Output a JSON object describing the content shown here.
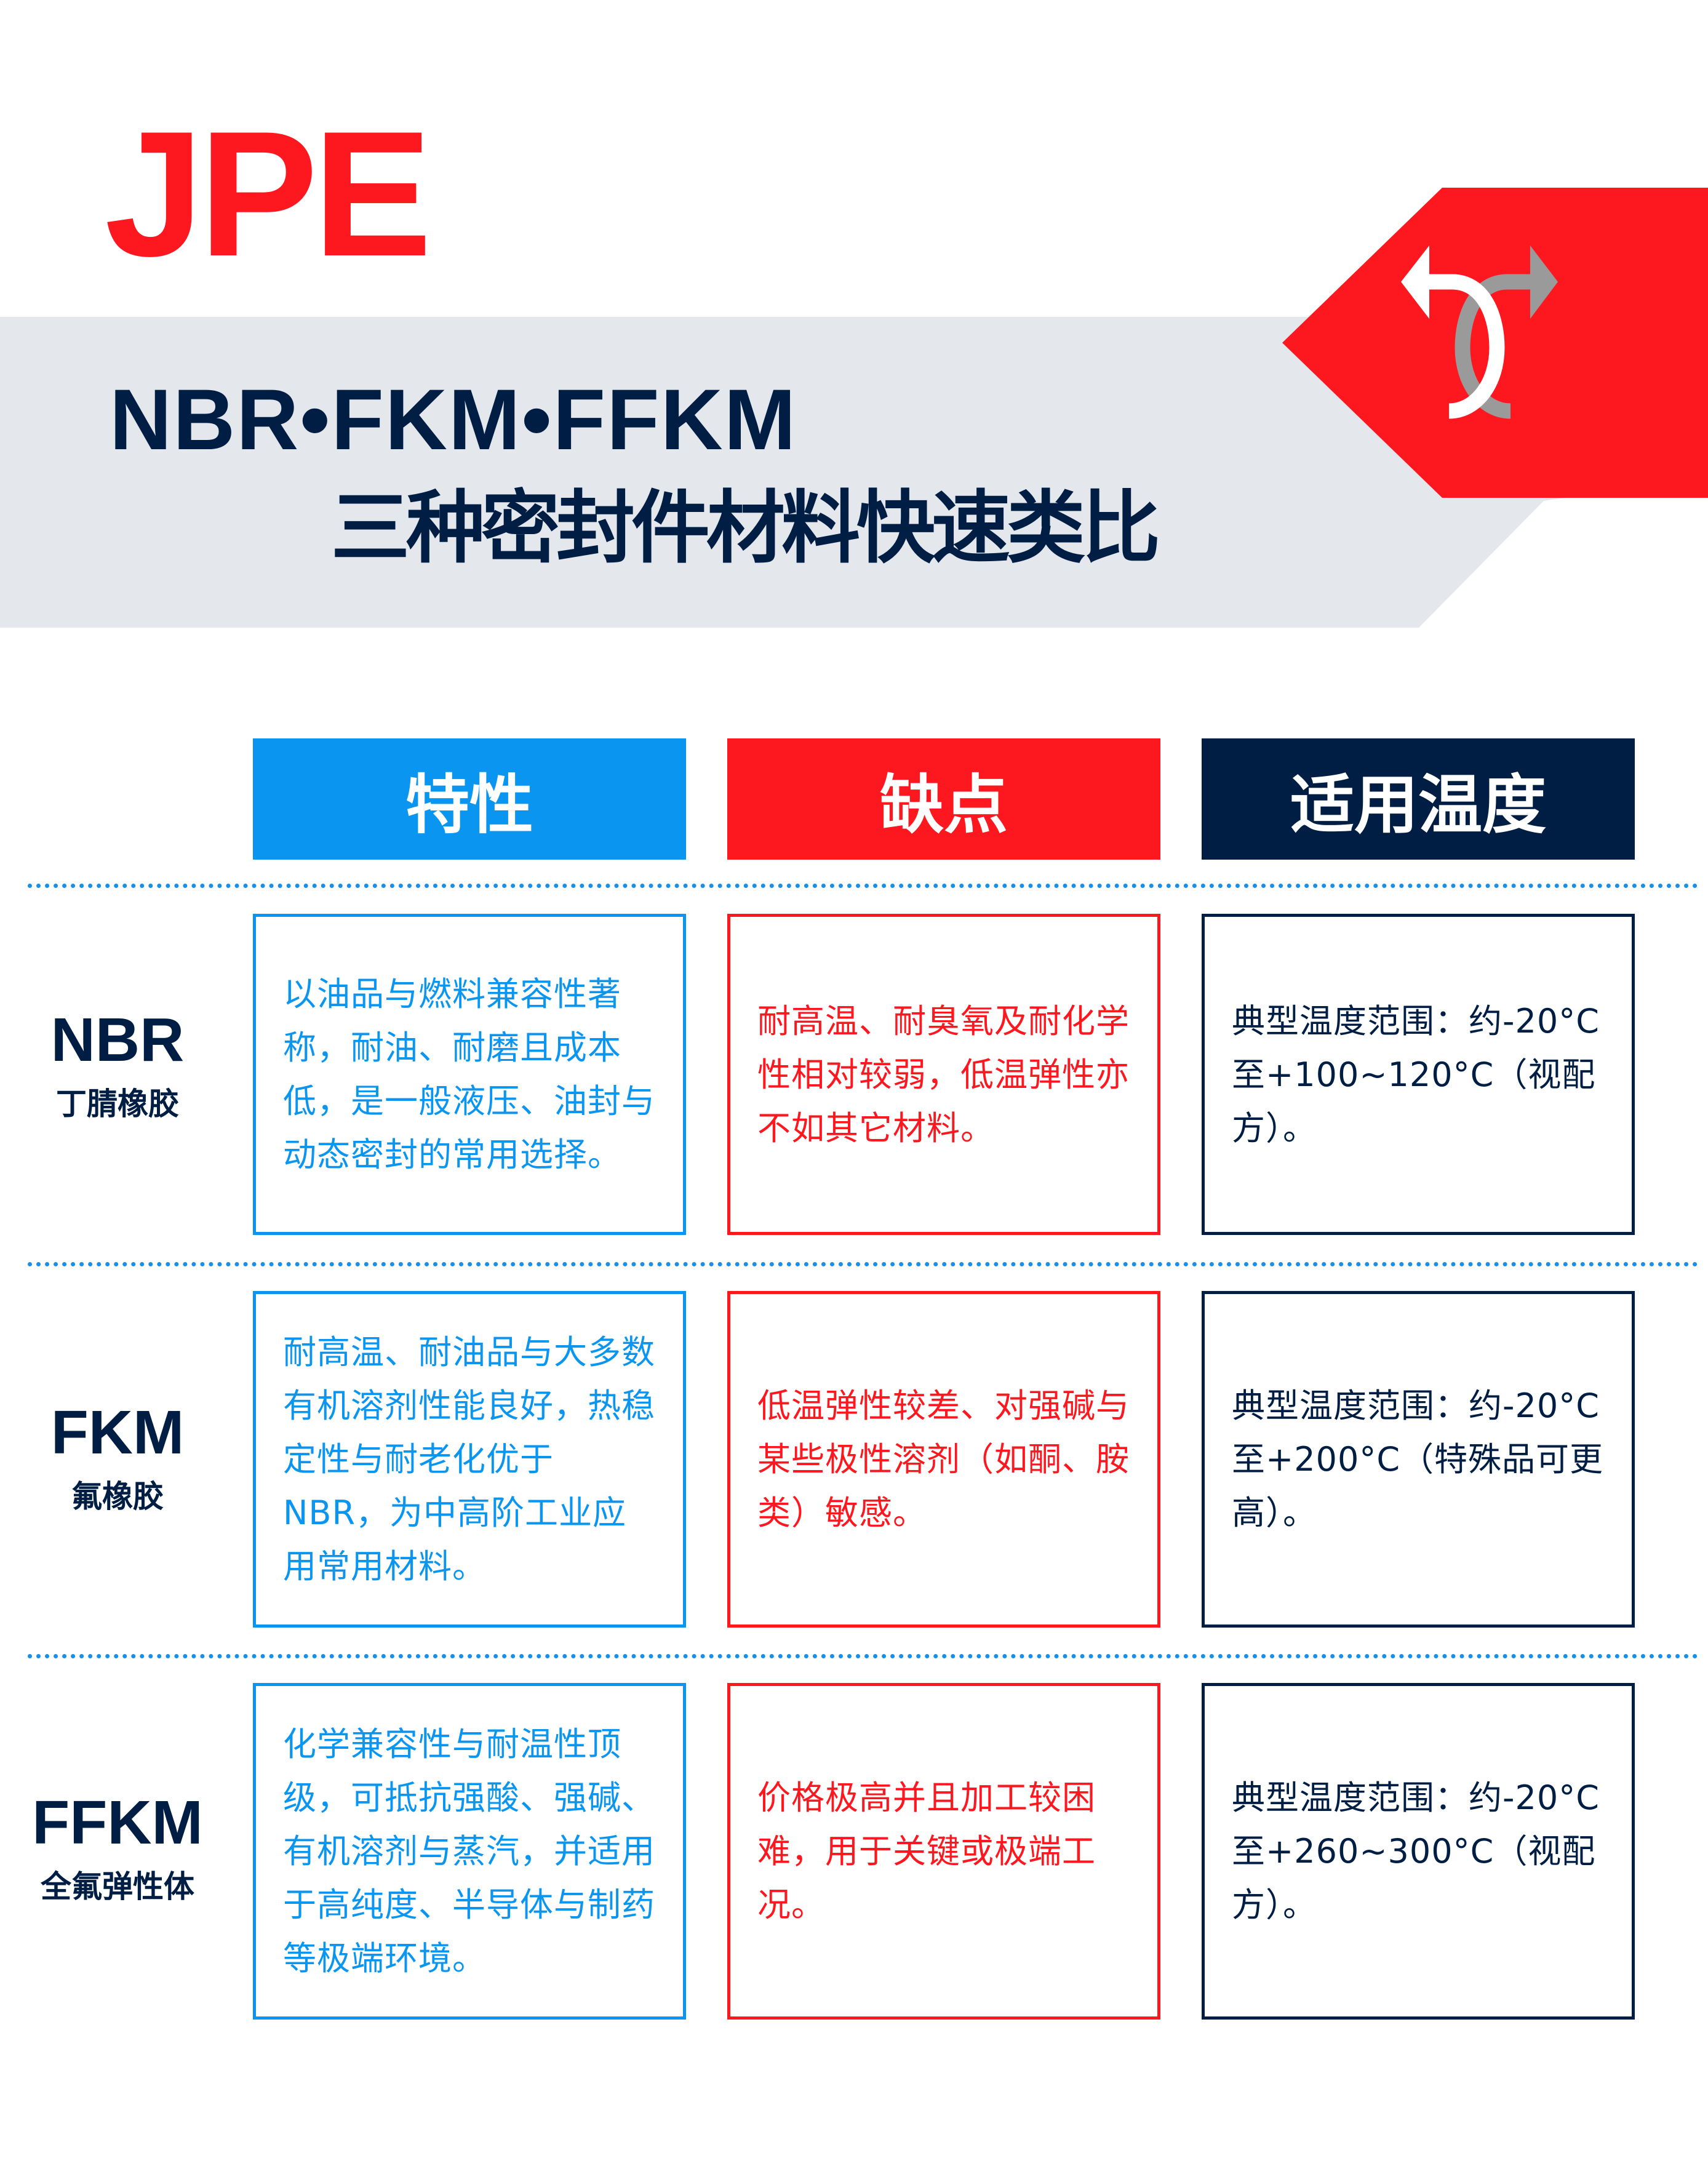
{
  "brand": {
    "logo_text": "JPE",
    "red": "#fd171f",
    "blue": "#0a96f0",
    "navy": "#001e44",
    "gray": "#e4e7ec"
  },
  "header": {
    "title_line1": "NBR•FKM•FFKM",
    "title_line2": "三种密封件材料快速类比",
    "icon": "crossing-arrows-icon"
  },
  "columns": [
    "特性",
    "缺点",
    "适用温度"
  ],
  "rows": [
    {
      "name": "NBR",
      "subname": "丁腈橡胶",
      "features": "以油品与燃料兼容性著称，耐油、耐磨且成本低，是一般液压、油封与动态密封的常用选择。",
      "drawbacks": "耐高温、耐臭氧及耐化学性相对较弱，低温弹性亦不如其它材料。",
      "temperature": "典型温度范围：约-20°C至+100~120°C（视配方）。"
    },
    {
      "name": "FKM",
      "subname": "氟橡胶",
      "features": "耐高温、耐油品与大多数有机溶剂性能良好，热稳定性与耐老化优于NBR，为中高阶工业应用常用材料。",
      "drawbacks": "低温弹性较差、对强碱与某些极性溶剂（如酮、胺类）敏感。",
      "temperature": "典型温度范围：约-20°C至+200°C（特殊品可更高）。"
    },
    {
      "name": "FFKM",
      "subname": "全氟弹性体",
      "features": "化学兼容性与耐温性顶级，可抵抗强酸、强碱、有机溶剂与蒸汽，并适用于高纯度、半导体与制药等极端环境。",
      "drawbacks": "价格极高并且加工较困难，用于关键或极端工况。",
      "temperature": "典型温度范围：约-20°C至+260~300°C（视配方）。"
    }
  ]
}
